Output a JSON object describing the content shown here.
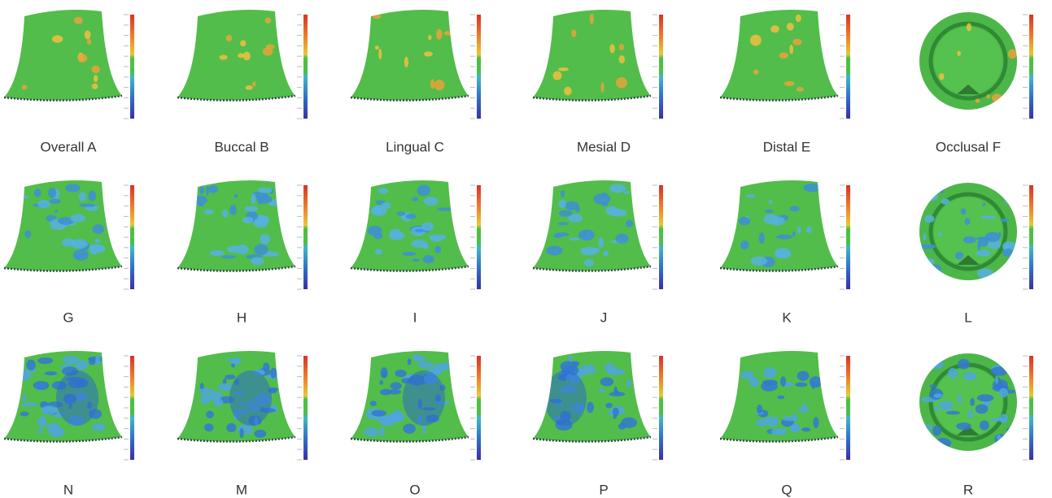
{
  "panels": {
    "rows": [
      [
        "Overall A",
        "Buccal B",
        "Lingual C",
        "Mesial D",
        "Distal E",
        "Occlusal F"
      ],
      [
        "G",
        "H",
        "I",
        "J",
        "K",
        "L"
      ],
      [
        "N",
        "M",
        "O",
        "P",
        "Q",
        "R"
      ]
    ]
  }
}
